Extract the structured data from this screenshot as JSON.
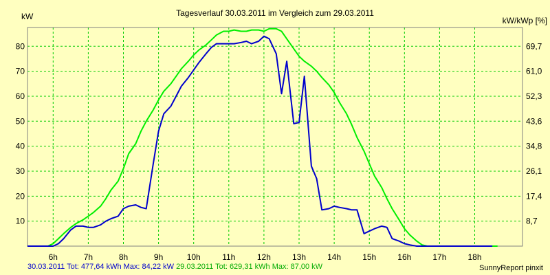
{
  "chart_data": {
    "type": "line",
    "title": "Tagesverlauf 30.03.2011 im Vergleich zum 29.03.2011",
    "ylabel_left": "kW",
    "ylabel_right": "kW/kWp [%]",
    "x_ticks": [
      "6h",
      "7h",
      "8h",
      "9h",
      "10h",
      "11h",
      "12h",
      "13h",
      "14h",
      "15h",
      "16h",
      "17h",
      "18h"
    ],
    "y_ticks_left": [
      10,
      20,
      30,
      40,
      50,
      60,
      70,
      80
    ],
    "y_ticks_right": [
      "8,7",
      "17,4",
      "26,1",
      "34,8",
      "43,6",
      "52,3",
      "61,0",
      "69,7"
    ],
    "xlim": [
      5.27,
      19.36
    ],
    "ylim": [
      0,
      87.5
    ],
    "grid": true,
    "series": [
      {
        "name": "30.03.2011 Tot: 477,64 kWh Max: 84,22 kW",
        "color": "#0000cc",
        "x": [
          5.27,
          5.5,
          5.65,
          5.85,
          6.0,
          6.15,
          6.3,
          6.5,
          6.65,
          6.85,
          7.0,
          7.15,
          7.35,
          7.5,
          7.65,
          7.85,
          8.0,
          8.15,
          8.35,
          8.5,
          8.65,
          8.85,
          9.0,
          9.15,
          9.35,
          9.5,
          9.65,
          9.85,
          10.0,
          10.15,
          10.35,
          10.5,
          10.65,
          10.85,
          11.0,
          11.15,
          11.35,
          11.5,
          11.65,
          11.85,
          12.0,
          12.15,
          12.35,
          12.5,
          12.65,
          12.85,
          13.0,
          13.15,
          13.35,
          13.5,
          13.65,
          13.85,
          14.0,
          14.15,
          14.35,
          14.5,
          14.65,
          14.85,
          15.0,
          15.15,
          15.35,
          15.5,
          15.65,
          15.85,
          16.0,
          16.15,
          16.35,
          16.5,
          16.65,
          16.85,
          17.0,
          17.15,
          17.35,
          17.5,
          17.65,
          17.85,
          18.0,
          18.15,
          18.35,
          18.5
        ],
        "y": [
          0,
          0,
          0,
          0,
          0,
          1,
          3,
          6.5,
          8,
          8,
          7.5,
          7.5,
          8.5,
          10,
          11,
          12,
          15,
          16,
          16.5,
          15.5,
          15,
          33,
          46,
          53,
          56,
          60,
          64,
          67.5,
          70.5,
          73.5,
          77,
          79.5,
          81,
          81,
          81,
          81,
          81.5,
          82,
          81,
          82,
          84,
          83,
          77,
          61,
          74,
          49,
          49.5,
          68,
          32,
          27,
          14.5,
          15,
          16,
          15.5,
          15,
          14.5,
          14.5,
          5,
          6,
          7,
          8,
          7.5,
          3,
          2,
          1,
          0.5,
          0,
          0,
          0,
          0,
          0,
          0,
          0,
          0,
          0,
          0,
          0,
          0,
          0,
          0
        ]
      },
      {
        "name": "29.03.2011 Tot: 629,31 kWh Max: 87,00 kW",
        "color": "#00ee00",
        "x": [
          5.27,
          5.5,
          5.65,
          5.85,
          6.0,
          6.15,
          6.3,
          6.5,
          6.65,
          6.85,
          7.0,
          7.15,
          7.35,
          7.5,
          7.65,
          7.85,
          8.0,
          8.15,
          8.35,
          8.5,
          8.65,
          8.85,
          9.0,
          9.15,
          9.35,
          9.5,
          9.65,
          9.85,
          10.0,
          10.15,
          10.35,
          10.5,
          10.65,
          10.85,
          11.0,
          11.15,
          11.35,
          11.5,
          11.65,
          11.85,
          12.0,
          12.15,
          12.35,
          12.5,
          12.65,
          12.85,
          13.0,
          13.15,
          13.35,
          13.5,
          13.65,
          13.85,
          14.0,
          14.15,
          14.35,
          14.5,
          14.65,
          14.85,
          15.0,
          15.15,
          15.35,
          15.5,
          15.65,
          15.85,
          16.0,
          16.15,
          16.35,
          16.5,
          16.65,
          16.85,
          17.0,
          17.15,
          17.35,
          17.5,
          17.65,
          17.85,
          18.0,
          18.15,
          18.35,
          18.5,
          18.65
        ],
        "y": [
          0,
          0,
          0,
          0,
          1,
          3,
          5,
          7.5,
          9,
          10.5,
          12,
          13.5,
          16,
          19,
          22.5,
          26,
          31,
          37,
          41,
          46,
          50,
          54.5,
          58.5,
          62,
          65,
          68,
          71,
          74,
          76.5,
          78.5,
          80.5,
          82.5,
          84.5,
          86,
          86,
          86.5,
          86,
          86,
          86.5,
          86.5,
          86,
          87,
          87,
          86,
          83,
          79,
          76,
          74,
          72,
          70,
          67.5,
          64.5,
          61.5,
          57.5,
          53,
          48.5,
          43.5,
          38,
          33,
          28,
          23.5,
          19,
          15,
          10.5,
          7,
          4.5,
          2,
          0.5,
          0,
          0,
          0,
          0,
          0,
          0,
          0,
          0,
          0,
          0,
          0,
          0,
          0
        ]
      }
    ]
  },
  "footer": {
    "series1_label": "30.03.2011 Tot: 477,64 kWh Max: 84,22 kW",
    "series2_label": "29.03.2011 Tot: 629,31 kWh Max: 87,00 kW",
    "credit": "SunnyReport pinxit"
  }
}
